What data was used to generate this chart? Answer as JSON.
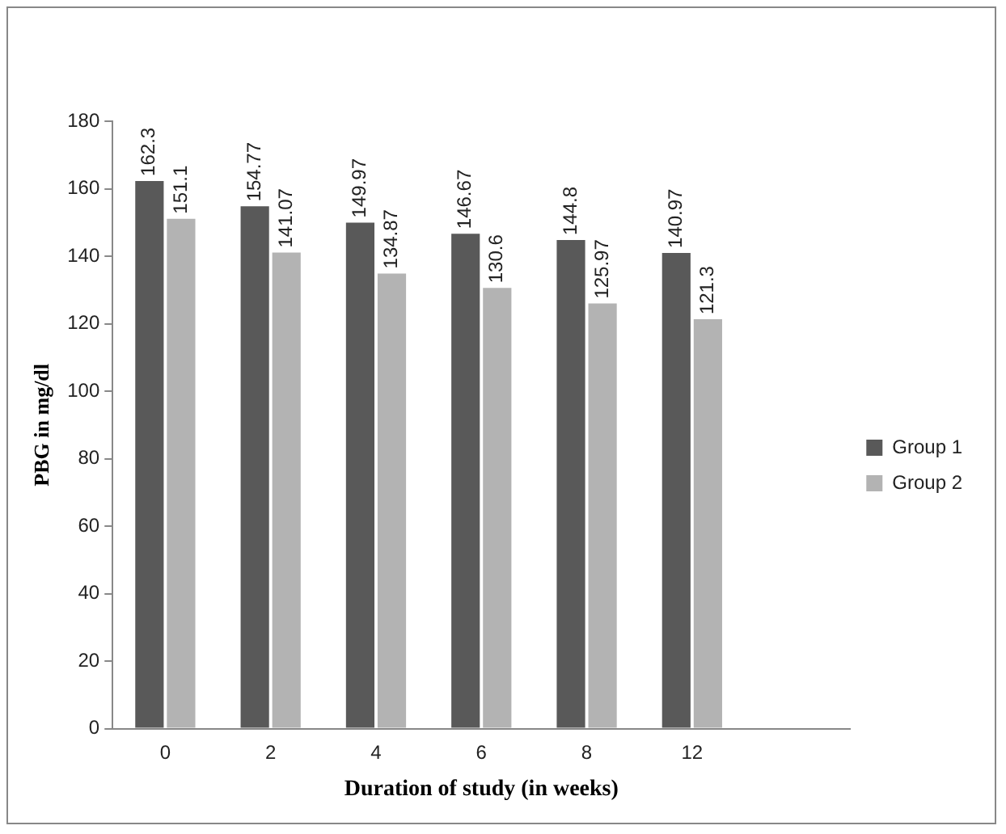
{
  "chart_data": {
    "type": "bar",
    "xlabel": "Duration of study (in weeks)",
    "ylabel": "PBG in mg/dl",
    "categories": [
      "0",
      "2",
      "4",
      "6",
      "8",
      "12",
      null
    ],
    "series": [
      {
        "name": "Group 1",
        "color": "#595959",
        "values": [
          162.3,
          154.77,
          149.97,
          146.67,
          144.8,
          140.97,
          null
        ]
      },
      {
        "name": "Group 2",
        "color": "#b3b3b3",
        "values": [
          151.1,
          141.07,
          134.87,
          130.6,
          125.97,
          121.3,
          null
        ]
      }
    ],
    "ylim": [
      0,
      180
    ],
    "yticks": [
      0,
      20,
      40,
      60,
      80,
      100,
      120,
      140,
      160,
      180
    ],
    "grid": false,
    "legend": "right",
    "data_labels": true
  }
}
